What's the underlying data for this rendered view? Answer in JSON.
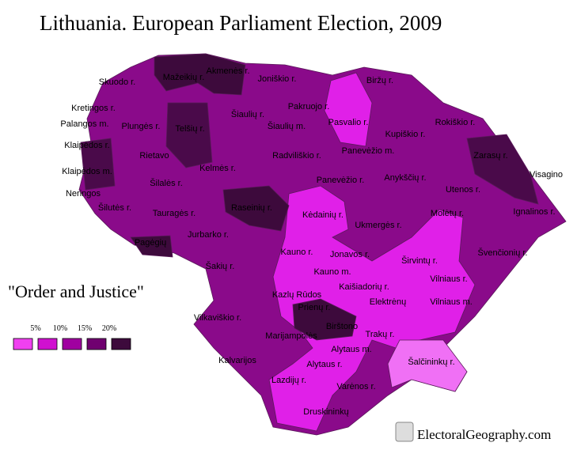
{
  "title": "Lithuania. European Parliament Election, 2009",
  "legend": {
    "title": "\"Order and Justice\"",
    "labels": [
      "5%",
      "10%",
      "15%",
      "20%"
    ]
  },
  "regions": [
    "Skuodo r.",
    "Mažeikių r.",
    "Akmenės r.",
    "Joniškio r.",
    "Biržų r.",
    "Kretingos r.",
    "Pakruojo r.",
    "Palangos m.",
    "Plungės r.",
    "Telšių r.",
    "Šiaulių r.",
    "Šiaulių m.",
    "Pasvalio r.",
    "Kupiškio r.",
    "Rokiškio r.",
    "Klaipėdos r.",
    "Rietavo",
    "Panevėžio m.",
    "Radviliškio r.",
    "Zarasų r.",
    "Klaipėdos m.",
    "Kelmės r.",
    "Visagino",
    "Panevėžio r.",
    "Anykščių r.",
    "Utenos r.",
    "Neringos",
    "Šilalės r.",
    "Šilutės r.",
    "Tauragės r.",
    "Raseinių r.",
    "Kėdainių r.",
    "Ignalinos r.",
    "Molėtų r.",
    "Ukmergės r.",
    "Pagėgių",
    "Jurbarko r.",
    "Kauno r.",
    "Jonavos r.",
    "Švenčionių r.",
    "Širvintų r.",
    "Šakių r.",
    "Kauno m.",
    "Vilniaus r.",
    "Kaišiadorių r.",
    "Kazlų Rūdos",
    "Elektrėnų",
    "Vilniaus m.",
    "Prienų r.",
    "Vilkaviškio r.",
    "Birštono",
    "Marijampolės",
    "Trakų r.",
    "Alytaus m.",
    "Kalvarijos",
    "Alytaus r.",
    "Šalčininkų r.",
    "Lazdijų r.",
    "Varėnos r.",
    "Druskininkų"
  ],
  "credit": "ElectoralGeography.com"
}
